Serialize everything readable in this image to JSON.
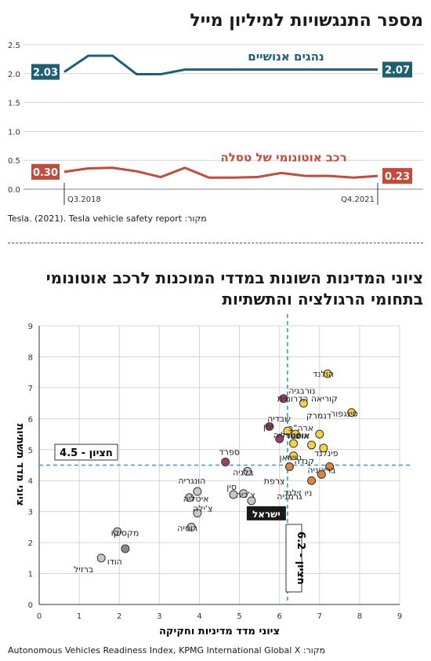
{
  "chart_data": [
    {
      "type": "line",
      "title": "מספר התנגשויות למיליון מייל",
      "source": "מקור: Tesla. (2021). Tesla vehicle safety report",
      "y_ticks": [
        "0.0",
        "0.5",
        "1.0",
        "1.5",
        "2.0",
        "2.5"
      ],
      "ylim": [
        0,
        2.5
      ],
      "x_labels": {
        "start": "Q3.2018",
        "end": "Q4.2021"
      },
      "grid": "horizontal",
      "series": [
        {
          "name": "נהגים אנושיים",
          "color": "#1f5f73",
          "values": [
            2.03,
            2.31,
            2.31,
            1.99,
            1.99,
            2.07,
            2.07,
            2.07,
            2.07,
            2.07,
            2.07,
            2.07,
            2.07,
            2.07
          ],
          "start_label": "2.03",
          "end_label": "2.07"
        },
        {
          "name": "רכב אוטונומי של טסלה",
          "color": "#c64a3a",
          "values": [
            0.3,
            0.36,
            0.37,
            0.31,
            0.21,
            0.37,
            0.2,
            0.2,
            0.21,
            0.28,
            0.23,
            0.23,
            0.2,
            0.23
          ],
          "start_label": "0.30",
          "end_label": "0.23"
        }
      ]
    },
    {
      "type": "scatter",
      "title": "ציוני המדינות השונות במדדי המוכנות לרכב אוטונומי בתחומי הרגולציה והתשתיות",
      "xlabel": "ציוני מדד מדיניות וחקיקה",
      "ylabel": "ציוני מדד תשתיות",
      "xlim": [
        0,
        9
      ],
      "ylim": [
        0,
        9
      ],
      "x_ticks": [
        "0",
        "1",
        "2",
        "3",
        "4",
        "5",
        "6",
        "7",
        "8",
        "9"
      ],
      "y_ticks": [
        "0",
        "1",
        "2",
        "3",
        "4",
        "5",
        "6",
        "7",
        "8",
        "9"
      ],
      "median_x": {
        "value": 6.2,
        "label": "חציון - 6.2"
      },
      "median_y": {
        "value": 4.5,
        "label": "חציון - 4.5"
      },
      "source": "מקור: Autonomous Vehicles Readiness Index, KPMG International Global X",
      "colors": {
        "yellow": "#f5d33a",
        "orange": "#e0843a",
        "purple": "#9b3f6b",
        "light_gray": "#c8c8c8",
        "dark_gray": "#8a8a8a"
      },
      "points": [
        {
          "name": "הולנד",
          "x": 7.2,
          "y": 7.45,
          "color": "yellow"
        },
        {
          "name": "נורבגיה",
          "x": 6.6,
          "y": 6.5,
          "color": "yellow"
        },
        {
          "name": "סינגפור",
          "x": 7.8,
          "y": 6.2,
          "color": "yellow"
        },
        {
          "name": "שבדיה",
          "x": 6.2,
          "y": 5.6,
          "color": "yellow"
        },
        {
          "name": "דנמרק",
          "x": 7.0,
          "y": 5.5,
          "color": "yellow"
        },
        {
          "name": "ארה\"ב",
          "x": 6.4,
          "y": 5.5,
          "color": "yellow"
        },
        {
          "name": "אוסטריה",
          "x": 6.35,
          "y": 5.2,
          "color": "yellow"
        },
        {
          "name": "פינלנד",
          "x": 6.8,
          "y": 5.15,
          "color": "yellow"
        },
        {
          "name": "קנדה",
          "x": 7.1,
          "y": 5.05,
          "color": "yellow"
        },
        {
          "name": "טייוואן",
          "x": 6.35,
          "y": 4.8,
          "color": "yellow"
        },
        {
          "name": "קוריאה הדרומית",
          "x": 6.1,
          "y": 6.65,
          "color": "purple"
        },
        {
          "name": "יפן",
          "x": 5.75,
          "y": 5.75,
          "color": "purple"
        },
        {
          "name": "אוסטרליה",
          "x": 6.0,
          "y": 5.35,
          "color": "purple"
        },
        {
          "name": "ספרד",
          "x": 4.65,
          "y": 4.6,
          "color": "purple"
        },
        {
          "name": "צרפת",
          "x": 6.25,
          "y": 4.45,
          "color": "orange"
        },
        {
          "name": "בריטניה",
          "x": 7.25,
          "y": 4.45,
          "color": "orange"
        },
        {
          "name": "ניו זילנד",
          "x": 7.05,
          "y": 4.2,
          "color": "orange"
        },
        {
          "name": "גרמניה",
          "x": 6.8,
          "y": 4.0,
          "color": "orange"
        },
        {
          "name": "בלגיה",
          "x": 5.2,
          "y": 4.3,
          "color": "light_gray"
        },
        {
          "name": "הונגריה",
          "x": 3.95,
          "y": 3.65,
          "color": "light_gray"
        },
        {
          "name": "צ'כיה",
          "x": 5.1,
          "y": 3.58,
          "color": "light_gray"
        },
        {
          "name": "איטליה",
          "x": 3.75,
          "y": 3.45,
          "color": "light_gray"
        },
        {
          "name": "סין",
          "x": 4.85,
          "y": 3.55,
          "color": "light_gray"
        },
        {
          "name": "ישראל",
          "x": 5.3,
          "y": 3.35,
          "color": "light_gray",
          "highlight": true
        },
        {
          "name": "צ'ילה",
          "x": 3.95,
          "y": 2.95,
          "color": "light_gray"
        },
        {
          "name": "רוסיה",
          "x": 3.8,
          "y": 2.5,
          "color": "light_gray"
        },
        {
          "name": "מקסיקו",
          "x": 1.95,
          "y": 2.35,
          "color": "light_gray"
        },
        {
          "name": "הודו",
          "x": 2.15,
          "y": 1.8,
          "color": "dark_gray"
        },
        {
          "name": "ברזיל",
          "x": 1.55,
          "y": 1.5,
          "color": "light_gray"
        }
      ]
    }
  ]
}
